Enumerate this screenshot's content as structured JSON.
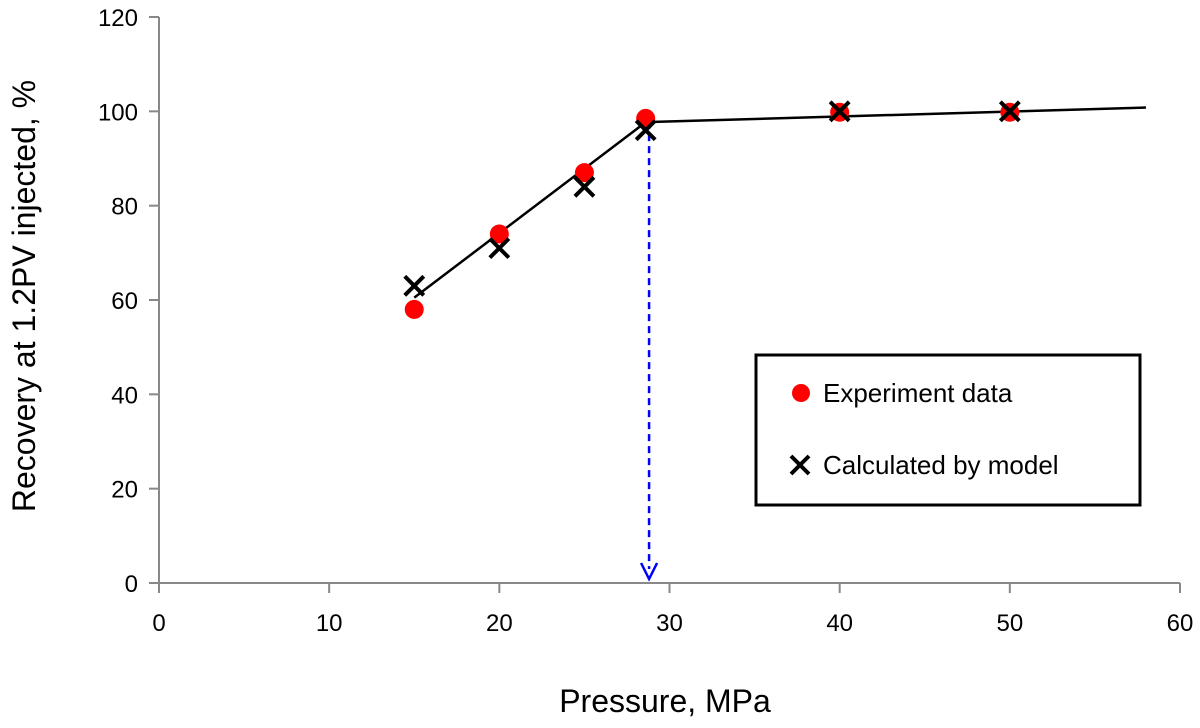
{
  "chart_data": {
    "type": "scatter",
    "title": "",
    "xlabel": "Pressure, MPa",
    "ylabel": "Recovery at 1.2PV injected, %",
    "xlim": [
      0,
      60
    ],
    "ylim": [
      0,
      120
    ],
    "xticks": [
      "0",
      "10",
      "20",
      "30",
      "40",
      "50",
      "60"
    ],
    "yticks": [
      "0",
      "20",
      "40",
      "60",
      "80",
      "100",
      "120"
    ],
    "grid": false,
    "legend_position": "bottom-right",
    "series": [
      {
        "name": "Experiment data",
        "marker": "circle",
        "color": "#ff0000",
        "x": [
          15,
          20,
          25,
          28.6,
          40,
          50
        ],
        "y": [
          58,
          74,
          87,
          98.5,
          99.8,
          99.8
        ]
      },
      {
        "name": "Calculated by model",
        "marker": "x",
        "color": "#000000",
        "x": [
          15,
          20,
          25,
          28.6,
          40,
          50
        ],
        "y": [
          63,
          71,
          84,
          96,
          100,
          100
        ]
      }
    ],
    "trend_lines": [
      {
        "x": [
          15,
          28.6
        ],
        "y": [
          60.5,
          97.7
        ],
        "color": "#000000"
      },
      {
        "x": [
          28.6,
          58
        ],
        "y": [
          97.7,
          100.8
        ],
        "color": "#000000"
      }
    ],
    "annotation": {
      "type": "dashed-arrow",
      "x": 28.8,
      "y_from": 97.7,
      "y_to": 0,
      "color": "#0000ff"
    }
  }
}
